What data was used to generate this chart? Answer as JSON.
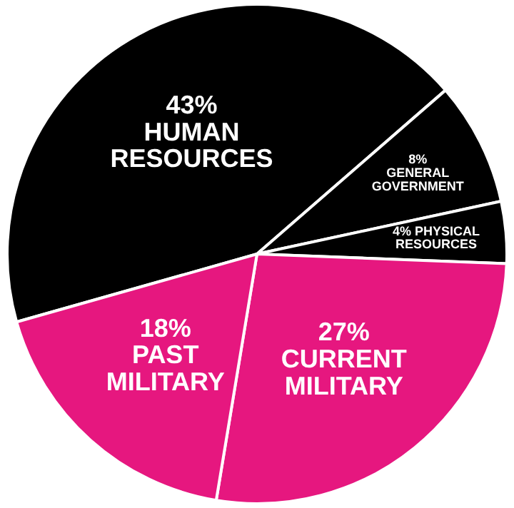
{
  "chart_data": {
    "type": "pie",
    "categories": [
      "HUMAN RESOURCES",
      "GENERAL GOVERNMENT",
      "PHYSICAL RESOURCES",
      "CURRENT MILITARY",
      "PAST MILITARY"
    ],
    "values": [
      43,
      8,
      4,
      27,
      18
    ],
    "value_labels": [
      "43%",
      "8%",
      "4%",
      "27%",
      "18%"
    ],
    "colors": [
      "#000000",
      "#000000",
      "#000000",
      "#e6177f",
      "#e6177f"
    ],
    "legend": false
  }
}
